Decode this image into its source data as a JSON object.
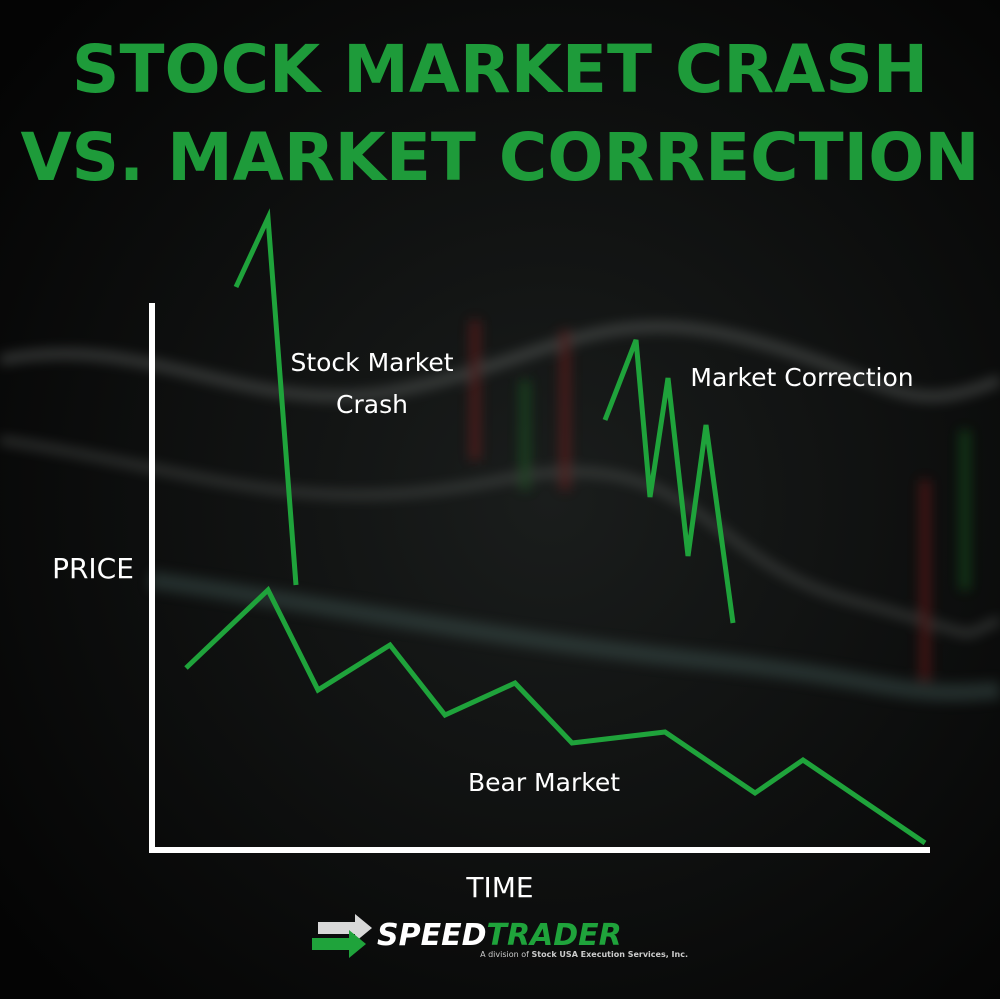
{
  "header": {
    "title_lines": [
      "STOCK MARKET CRASH",
      "VS. MARKET CORRECTION"
    ]
  },
  "axes": {
    "y_label": "PRICE",
    "x_label": "TIME"
  },
  "annotations": {
    "crash": [
      "Stock Market",
      "Crash"
    ],
    "correction": "Market Correction",
    "bear": "Bear Market"
  },
  "footer": {
    "logo_part1": "SPEED",
    "logo_part2": "TRADER",
    "tagline_prefix": "A division of",
    "tagline_company": "Stock USA Execution Services, Inc."
  }
}
